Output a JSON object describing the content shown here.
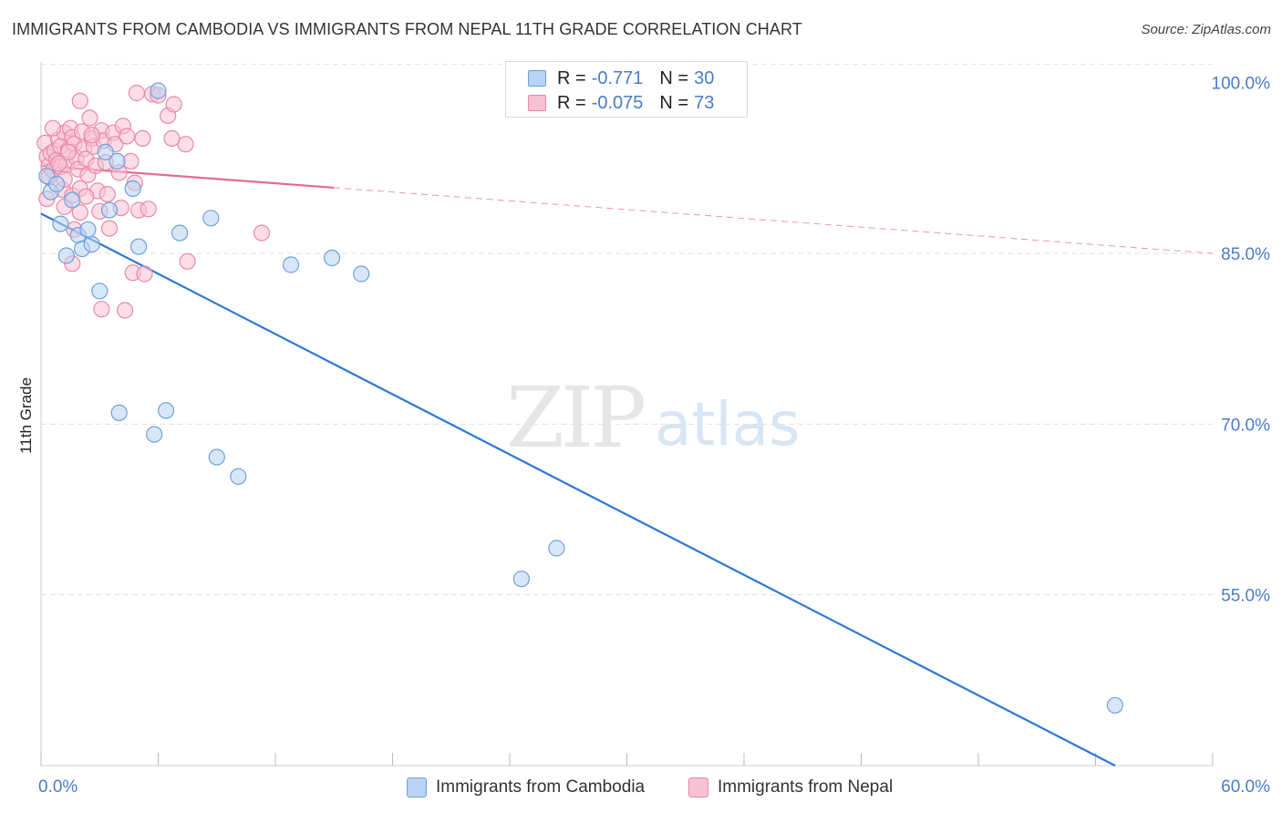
{
  "title": "IMMIGRANTS FROM CAMBODIA VS IMMIGRANTS FROM NEPAL 11TH GRADE CORRELATION CHART",
  "source": "Source: ZipAtlas.com",
  "watermark": {
    "zip": "ZIP",
    "atlas": "atlas"
  },
  "colors": {
    "blue_fill": "#b8d3f3",
    "blue_stroke": "#6fa0dc",
    "blue_line": "#2e78d2",
    "pink_fill": "#f7c1d2",
    "pink_stroke": "#e889a8",
    "pink_line": "#e46a95",
    "tick_text": "#4a7cc7",
    "grid": "#e1e1e1"
  },
  "legend": {
    "rows": [
      {
        "r_label": "R =",
        "r_value": "-0.771",
        "n_label": "N =",
        "n_value": "30"
      },
      {
        "r_label": "R =",
        "r_value": "-0.075",
        "n_label": "N =",
        "n_value": "73"
      }
    ]
  },
  "bottom_legend": {
    "cambodia": "Immigrants from Cambodia",
    "nepal": "Immigrants from Nepal"
  },
  "chart_data": {
    "type": "scatter",
    "title": "IMMIGRANTS FROM CAMBODIA VS IMMIGRANTS FROM NEPAL 11TH GRADE CORRELATION CHART",
    "ylabel": "11th Grade",
    "xlabel": "",
    "xlim": [
      0,
      60
    ],
    "ylim": [
      40,
      101.5
    ],
    "x_tick_labels": [
      "0.0%",
      "60.0%"
    ],
    "y_ticks": [
      55,
      70,
      85,
      100
    ],
    "y_tick_labels": [
      "55.0%",
      "70.0%",
      "85.0%",
      "100.0%"
    ],
    "grid": true,
    "legend_position": "top-center",
    "series": [
      {
        "name": "Immigrants from Cambodia",
        "color": "#b8d3f3",
        "r": -0.771,
        "n": 30,
        "points": [
          [
            0.3,
            91.8
          ],
          [
            0.5,
            90.4
          ],
          [
            0.8,
            91.1
          ],
          [
            1.0,
            87.6
          ],
          [
            1.3,
            84.8
          ],
          [
            1.6,
            89.7
          ],
          [
            1.9,
            86.6
          ],
          [
            2.1,
            85.4
          ],
          [
            2.4,
            87.1
          ],
          [
            2.6,
            85.8
          ],
          [
            3.0,
            81.7
          ],
          [
            3.3,
            93.9
          ],
          [
            3.5,
            88.8
          ],
          [
            3.9,
            93.1
          ],
          [
            4.7,
            90.7
          ],
          [
            5.0,
            85.6
          ],
          [
            6.0,
            99.3
          ],
          [
            7.1,
            86.8
          ],
          [
            8.7,
            88.1
          ],
          [
            12.8,
            84.0
          ],
          [
            14.9,
            84.6
          ],
          [
            16.4,
            83.2
          ],
          [
            4.0,
            71.0
          ],
          [
            5.8,
            69.1
          ],
          [
            6.4,
            71.2
          ],
          [
            9.0,
            67.1
          ],
          [
            10.1,
            65.4
          ],
          [
            24.6,
            56.4
          ],
          [
            26.4,
            59.1
          ],
          [
            55.0,
            45.3
          ]
        ],
        "trend": {
          "x0": 0,
          "y0": 88.5,
          "x1": 55.0,
          "y1": 40.0,
          "solid_to": 55.0
        }
      },
      {
        "name": "Immigrants from Nepal",
        "color": "#f7c1d2",
        "r": -0.075,
        "n": 73,
        "points": [
          [
            0.2,
            94.7
          ],
          [
            0.3,
            93.5
          ],
          [
            0.4,
            92.7
          ],
          [
            0.4,
            91.7
          ],
          [
            0.5,
            93.8
          ],
          [
            0.6,
            92.3
          ],
          [
            0.7,
            94.0
          ],
          [
            0.8,
            93.2
          ],
          [
            0.9,
            95.0
          ],
          [
            1.0,
            94.4
          ],
          [
            1.0,
            92.6
          ],
          [
            1.1,
            90.6
          ],
          [
            1.2,
            95.6
          ],
          [
            1.2,
            89.1
          ],
          [
            1.3,
            92.8
          ],
          [
            1.4,
            94.1
          ],
          [
            1.5,
            96.0
          ],
          [
            1.6,
            95.2
          ],
          [
            1.6,
            90.1
          ],
          [
            1.7,
            94.6
          ],
          [
            1.7,
            87.1
          ],
          [
            1.8,
            93.4
          ],
          [
            1.9,
            92.4
          ],
          [
            2.0,
            90.7
          ],
          [
            2.0,
            88.6
          ],
          [
            2.1,
            95.7
          ],
          [
            2.2,
            94.2
          ],
          [
            2.3,
            93.3
          ],
          [
            2.4,
            91.9
          ],
          [
            2.5,
            96.9
          ],
          [
            2.6,
            95.1
          ],
          [
            2.7,
            94.4
          ],
          [
            2.8,
            92.7
          ],
          [
            2.9,
            90.5
          ],
          [
            3.0,
            88.7
          ],
          [
            3.1,
            95.8
          ],
          [
            3.2,
            94.9
          ],
          [
            3.3,
            93.0
          ],
          [
            3.4,
            90.2
          ],
          [
            3.5,
            87.2
          ],
          [
            3.7,
            95.6
          ],
          [
            3.8,
            94.6
          ],
          [
            4.0,
            92.1
          ],
          [
            4.1,
            89.0
          ],
          [
            4.2,
            96.2
          ],
          [
            4.4,
            95.3
          ],
          [
            4.6,
            93.1
          ],
          [
            4.8,
            91.2
          ],
          [
            5.0,
            88.8
          ],
          [
            5.2,
            95.1
          ],
          [
            5.5,
            88.9
          ],
          [
            5.7,
            99.0
          ],
          [
            6.0,
            98.9
          ],
          [
            6.5,
            97.1
          ],
          [
            6.8,
            98.1
          ],
          [
            7.4,
            94.6
          ],
          [
            0.9,
            92.9
          ],
          [
            1.6,
            84.1
          ],
          [
            2.0,
            98.4
          ],
          [
            3.1,
            80.1
          ],
          [
            4.3,
            80.0
          ],
          [
            4.7,
            83.3
          ],
          [
            5.3,
            83.2
          ],
          [
            6.7,
            95.1
          ],
          [
            7.5,
            84.3
          ],
          [
            11.3,
            86.8
          ],
          [
            0.3,
            89.8
          ],
          [
            1.2,
            91.5
          ],
          [
            2.3,
            90.0
          ],
          [
            4.9,
            99.1
          ],
          [
            1.4,
            93.9
          ],
          [
            2.6,
            95.4
          ],
          [
            0.6,
            96.0
          ]
        ],
        "trend": {
          "x0": 0,
          "y0": 92.7,
          "x1": 60.0,
          "y1": 85.0,
          "solid_to": 15.0
        }
      }
    ]
  }
}
